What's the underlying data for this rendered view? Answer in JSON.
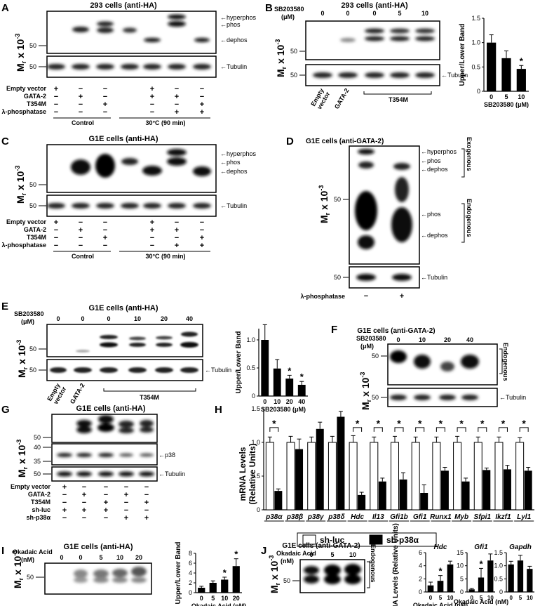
{
  "common": {
    "mr_label_base": "M",
    "mr_label_sub": "r",
    "mr_label_rest": " x 10",
    "mr_label_exp": "-3",
    "tubulin": "Tubulin",
    "mw_40": "40",
    "mw_35": "35",
    "mw_50": "50",
    "empty_vector": "Empty vector",
    "gata2": "GATA-2",
    "t354m": "T354M",
    "lambda_phosphatase": "λ-phosphatase",
    "plus": "+",
    "minus": "−",
    "control": "Control",
    "temp": "30°C (90 min)",
    "empty": "Empty",
    "vector": "vector",
    "upper_lower": "Upper/Lower Band",
    "endogenous": "Endogenous",
    "exogenous": "Exogenous",
    "sb203580": "SB203580",
    "um": "(μM)",
    "sb_um_axis": "SB203580 (μM)",
    "okadaic": "Okadaic Acid",
    "nm": "(nM)",
    "okadaic_axis": "Okadaic Acid (nM)",
    "star": "*"
  },
  "panels": {
    "A": {
      "letter": "A",
      "title": "293 cells (anti-HA)",
      "hyper": "hyperphos",
      "phos": "phos",
      "dephos": "dephos",
      "rows": [
        [
          "+",
          "−",
          "−",
          "+",
          "−",
          "−"
        ],
        [
          "−",
          "+",
          "−",
          "+",
          "+",
          "−"
        ],
        [
          "−",
          "−",
          "+",
          "−",
          "−",
          "+"
        ],
        [
          "−",
          "−",
          "−",
          "−",
          "+",
          "+"
        ]
      ]
    },
    "B": {
      "letter": "B",
      "title": "293 cells (anti-HA)",
      "doses": [
        "0",
        "0",
        "0",
        "5",
        "10"
      ]
    },
    "C": {
      "letter": "C",
      "title": "G1E cells (anti-HA)",
      "hyper": "hyperphos",
      "phos": "phos",
      "dephos": "dephos"
    },
    "D": {
      "letter": "D",
      "title": "G1E cells (anti-GATA-2)",
      "hyper": "hyperphos",
      "phos": "phos",
      "dephos": "dephos"
    },
    "E": {
      "letter": "E",
      "title": "G1E cells (anti-HA)",
      "doses": [
        "0",
        "0",
        "0",
        "10",
        "20",
        "40"
      ]
    },
    "F": {
      "letter": "F",
      "title": "G1E cells (anti-GATA-2)",
      "doses": [
        "0",
        "10",
        "20",
        "40"
      ]
    },
    "G": {
      "letter": "G",
      "title": "G1E cells (anti-HA)",
      "p38": "p38",
      "shluc": "sh-luc",
      "shp38": "sh-p38α",
      "rows": [
        [
          "+",
          "−",
          "−",
          "−",
          "−"
        ],
        [
          "−",
          "+",
          "−",
          "+",
          "−"
        ],
        [
          "−",
          "−",
          "+",
          "−",
          "+"
        ],
        [
          "+",
          "+",
          "+",
          "−",
          "−"
        ],
        [
          "−",
          "−",
          "−",
          "+",
          "+"
        ]
      ]
    },
    "H": {
      "letter": "H",
      "ylabel1": "mRNA Levels",
      "ylabel2": "(Relative Units)",
      "legend_luc": "sh-luc",
      "legend_p38": "sh-p38α"
    },
    "I": {
      "letter": "I",
      "title": "G1E cells (anti-HA)",
      "doses": [
        "0",
        "0",
        "5",
        "10",
        "20"
      ]
    },
    "J": {
      "letter": "J",
      "title": "G1E cells (anti-GATA-2)",
      "doses": [
        "0",
        "5",
        "10"
      ]
    }
  },
  "chart_data": [
    {
      "type": "bar",
      "panel": "B",
      "categories": [
        "0",
        "5",
        "10"
      ],
      "values": [
        1.0,
        0.68,
        0.46
      ],
      "errors": [
        0.16,
        0.15,
        0.07
      ],
      "ylabel": "Upper/Lower Band",
      "xlabel": "SB203580 (μM)",
      "ylim": [
        0,
        1.5
      ],
      "yticks": [
        "0",
        "0.5",
        "1.0",
        "1.5"
      ],
      "stars": [
        false,
        false,
        true
      ]
    },
    {
      "type": "bar",
      "panel": "E",
      "categories": [
        "0",
        "10",
        "20",
        "40"
      ],
      "values": [
        1.0,
        0.49,
        0.31,
        0.2
      ],
      "errors": [
        0.27,
        0.16,
        0.06,
        0.06
      ],
      "ylabel": "Upper/Lower Band",
      "xlabel": "SB203580 (μM)",
      "ylim": [
        0,
        1.2
      ],
      "yticks": [
        "0",
        "0.5",
        "1.0"
      ],
      "stars": [
        false,
        false,
        true,
        true
      ]
    },
    {
      "type": "bar",
      "panel": "H",
      "ylabel": "mRNA Levels (Relative Units)",
      "ylim": [
        0,
        1.5
      ],
      "yticks": [
        "0",
        "0.5",
        "1.0",
        "1.5"
      ],
      "categories": [
        "p38α",
        "p38β",
        "p38γ",
        "p38δ",
        "Hdc",
        "Il13",
        "Gfi1b",
        "Gfi1",
        "Runx1",
        "Myb",
        "Sfpi1",
        "Ikzf1",
        "Lyl1"
      ],
      "series": [
        {
          "name": "sh-luc",
          "values": [
            1.0,
            1.0,
            1.0,
            1.0,
            1.0,
            1.0,
            1.0,
            1.0,
            1.0,
            1.0,
            1.0,
            1.0,
            1.0
          ]
        },
        {
          "name": "sh-p38α",
          "values": [
            0.28,
            0.9,
            1.2,
            1.38,
            0.22,
            0.42,
            0.45,
            0.25,
            0.58,
            0.42,
            0.59,
            0.6,
            0.58
          ]
        }
      ],
      "stars": [
        true,
        false,
        false,
        false,
        true,
        true,
        true,
        true,
        true,
        true,
        true,
        true,
        true
      ]
    },
    {
      "type": "bar",
      "panel": "I",
      "categories": [
        "0",
        "5",
        "10",
        "20"
      ],
      "values": [
        1.0,
        2.0,
        2.65,
        5.4
      ],
      "errors": [
        0.3,
        0.4,
        0.5,
        1.5
      ],
      "ylabel": "Upper/Lower Band",
      "xlabel": "Okadaic Acid (nM)",
      "ylim": [
        0,
        8
      ],
      "yticks": [
        "0",
        "2",
        "4",
        "6",
        "8"
      ],
      "stars": [
        false,
        false,
        true,
        true
      ]
    },
    {
      "type": "bar",
      "panel": "J",
      "title": "Hdc",
      "categories": [
        "0",
        "5",
        "10"
      ],
      "values": [
        1.0,
        1.7,
        4.2
      ],
      "errors": [
        0.5,
        0.8,
        0.5
      ],
      "ylabel": "mRNA Levels (Relative Units)",
      "xlabel": "Okadaic Acid (nM)",
      "ylim": [
        0,
        6
      ],
      "yticks": [
        "0",
        "2",
        "4",
        "6"
      ],
      "stars": [
        false,
        true,
        false
      ]
    },
    {
      "type": "bar",
      "panel": "J",
      "title": "Gfi1",
      "categories": [
        "0",
        "5",
        "10"
      ],
      "values": [
        1.0,
        5.5,
        12.0
      ],
      "errors": [
        0.3,
        3.5,
        2.5
      ],
      "ylabel": "",
      "xlabel": "Okadaic Acid (nM)",
      "ylim": [
        0,
        15
      ],
      "yticks": [
        "0",
        "5",
        "10",
        "15"
      ],
      "stars": [
        false,
        true,
        false
      ]
    },
    {
      "type": "bar",
      "panel": "J",
      "title": "Gapdh",
      "categories": [
        "0",
        "5",
        "10"
      ],
      "values": [
        1.05,
        1.2,
        0.88
      ],
      "errors": [
        0.12,
        0.2,
        0.1
      ],
      "ylabel": "",
      "xlabel": "",
      "ylim": [
        0,
        1.5
      ],
      "yticks": [
        "0",
        "0.5",
        "1.0",
        "1.5"
      ],
      "stars": [
        false,
        false,
        false
      ]
    }
  ]
}
